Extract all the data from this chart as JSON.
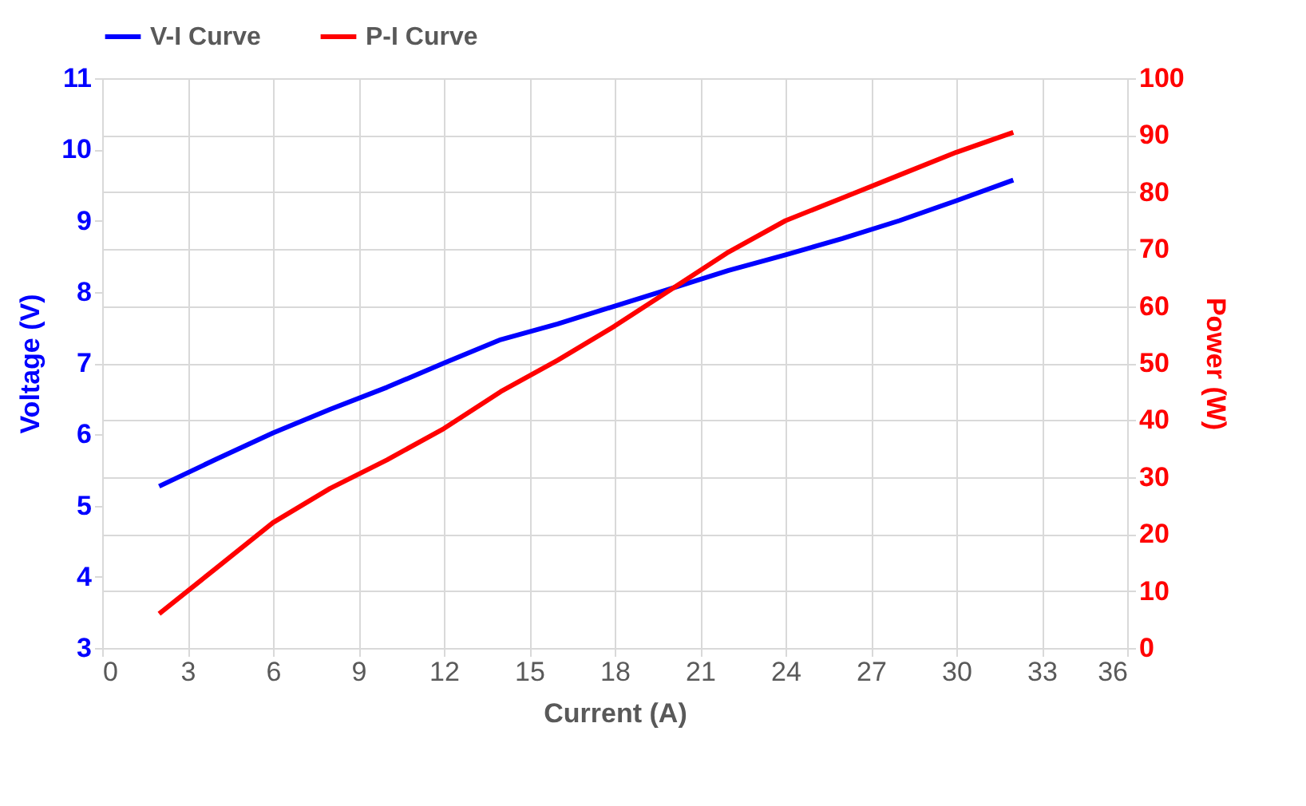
{
  "chart_data": {
    "type": "line",
    "xlabel": "Current (A)",
    "ylabel": "Voltage (V)",
    "y2label": "Power (W)",
    "x": [
      2,
      4,
      6,
      8,
      10,
      12,
      14,
      16,
      18,
      20,
      22,
      24,
      26,
      28,
      30,
      32
    ],
    "series": [
      {
        "name": "V-I Curve",
        "color": "#0000ff",
        "values": [
          5.27,
          5.65,
          6.02,
          6.35,
          6.66,
          7.0,
          7.33,
          7.55,
          7.8,
          8.05,
          8.3,
          8.52,
          8.75,
          9.0,
          9.28,
          9.57
        ]
      },
      {
        "name": "P-I Curve",
        "color": "#ff0000",
        "axis": "y2",
        "values": [
          6,
          14,
          22,
          28,
          33,
          38.5,
          45,
          50.5,
          56.5,
          63,
          69.5,
          75,
          79,
          83,
          87,
          90.5
        ]
      }
    ],
    "xlim": [
      0,
      36
    ],
    "xticks": [
      0,
      3,
      6,
      9,
      12,
      15,
      18,
      21,
      24,
      27,
      30,
      33,
      36
    ],
    "ylim": [
      3,
      11
    ],
    "yticks": [
      3,
      4,
      5,
      6,
      7,
      8,
      9,
      10,
      11
    ],
    "y2lim": [
      0,
      100
    ],
    "y2ticks": [
      0,
      10,
      20,
      30,
      40,
      50,
      60,
      70,
      80,
      90,
      100
    ],
    "grid": true,
    "legend": "top",
    "marker": "none",
    "line_style": "solid"
  }
}
